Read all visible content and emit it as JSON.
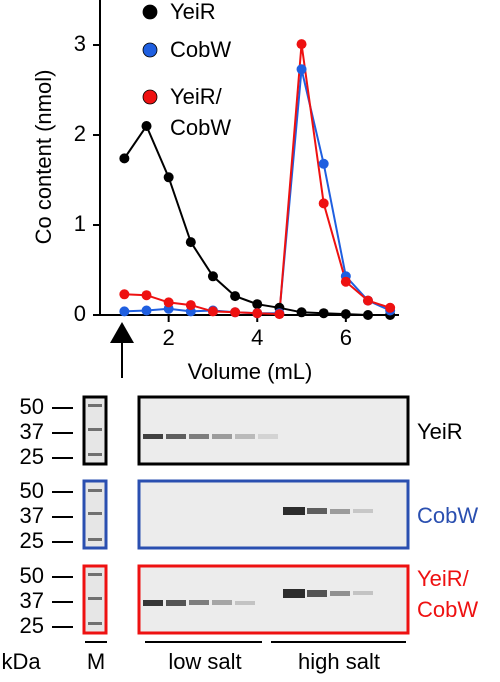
{
  "chart_data": {
    "type": "line",
    "x_label": "Volume (mL)",
    "y_label": "Co content (nmol)",
    "xlim": [
      0.45,
      7.2
    ],
    "xticks": [
      2,
      4,
      6
    ],
    "ylim": [
      0,
      3.5
    ],
    "yticks": [
      0,
      1,
      2,
      3
    ],
    "x": [
      1,
      1.5,
      2,
      2.5,
      3,
      3.5,
      4,
      4.5,
      5,
      5.5,
      6,
      6.5,
      7
    ],
    "series": [
      {
        "name": "YeiR",
        "color": "#000000",
        "values": [
          1.74,
          2.1,
          1.53,
          0.81,
          0.43,
          0.21,
          0.12,
          0.08,
          0.03,
          0.02,
          0.01,
          0.0,
          0.0
        ]
      },
      {
        "name": "CobW",
        "color": "#1f5fe0",
        "values": [
          0.04,
          0.05,
          0.07,
          0.04,
          0.05,
          0.03,
          0.02,
          0.02,
          2.73,
          1.68,
          0.43,
          0.16,
          0.05
        ]
      },
      {
        "name": "YeiR/\nCobW",
        "color": "#ee1111",
        "values": [
          0.23,
          0.22,
          0.14,
          0.11,
          0.04,
          0.03,
          0.02,
          0.01,
          3.01,
          1.24,
          0.37,
          0.16,
          0.08
        ]
      }
    ]
  },
  "gels": {
    "panels": [
      {
        "label": "YeiR",
        "color": "#000000"
      },
      {
        "label": "CobW",
        "color": "#2a4fb0"
      },
      {
        "label": "YeiR/\nCobW",
        "color": "#ee1111"
      }
    ],
    "marker_labels": [
      "50",
      "37",
      "25"
    ],
    "unit": "kDa",
    "marker_lane": "M",
    "groups": [
      "low salt",
      "high salt"
    ]
  }
}
